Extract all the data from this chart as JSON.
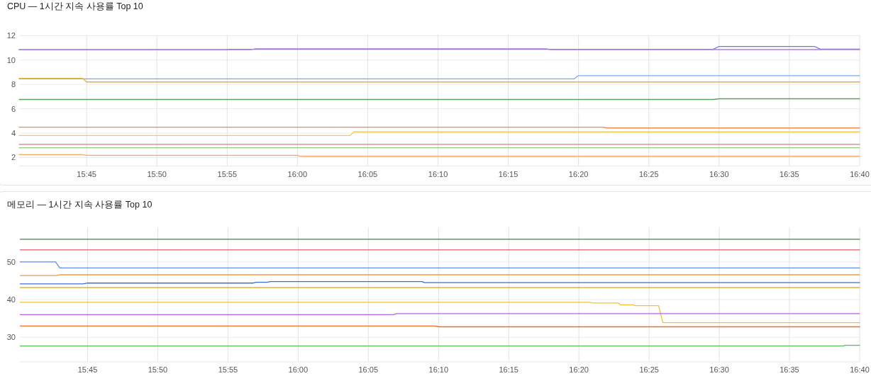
{
  "chart_data": [
    {
      "type": "line",
      "title": "CPU — 1시간 지속 사용률 Top 10",
      "xlim": [
        15.67,
        16.6667
      ],
      "ylim": [
        1.3,
        12
      ],
      "grid": true,
      "xticks": [
        {
          "value": 15.75,
          "label": "15:45"
        },
        {
          "value": 15.8333,
          "label": "15:50"
        },
        {
          "value": 15.9167,
          "label": "15:55"
        },
        {
          "value": 16.0,
          "label": "16:00"
        },
        {
          "value": 16.0833,
          "label": "16:05"
        },
        {
          "value": 16.1667,
          "label": "16:10"
        },
        {
          "value": 16.25,
          "label": "16:15"
        },
        {
          "value": 16.3333,
          "label": "16:20"
        },
        {
          "value": 16.4167,
          "label": "16:25"
        },
        {
          "value": 16.5,
          "label": "16:30"
        },
        {
          "value": 16.5833,
          "label": "16:35"
        },
        {
          "value": 16.6667,
          "label": "16:40"
        }
      ],
      "yticks": [
        2,
        4,
        6,
        8,
        10,
        12
      ],
      "series": [
        {
          "color": "#5b7fe0",
          "x": [
            15.67,
            15.915,
            15.92,
            16.493,
            16.5,
            16.613,
            16.62,
            16.6667
          ],
          "values": [
            10.85,
            10.85,
            10.88,
            10.88,
            11.12,
            11.12,
            10.9,
            10.9
          ]
        },
        {
          "color": "#b878e6",
          "x": [
            15.67,
            15.945,
            15.95,
            16.295,
            16.3,
            16.6667
          ],
          "values": [
            10.85,
            10.85,
            10.92,
            10.92,
            10.86,
            10.86
          ]
        },
        {
          "color": "#7fa7ef",
          "x": [
            15.67,
            16.328,
            16.333,
            16.6667
          ],
          "values": [
            8.45,
            8.45,
            8.72,
            8.72
          ]
        },
        {
          "color": "#e0b43a",
          "x": [
            15.67,
            15.745,
            15.75,
            16.6667
          ],
          "values": [
            8.5,
            8.5,
            8.2,
            8.2
          ]
        },
        {
          "color": "#5aa55a",
          "x": [
            15.67,
            16.493,
            16.5,
            16.6667
          ],
          "values": [
            6.76,
            6.76,
            6.82,
            6.82
          ]
        },
        {
          "color": "#f08a4b",
          "x": [
            15.67,
            16.363,
            16.367,
            16.6667
          ],
          "values": [
            4.48,
            4.48,
            4.42,
            4.42
          ]
        },
        {
          "color": "#f2cc55",
          "x": [
            15.67,
            16.062,
            16.067,
            16.6667
          ],
          "values": [
            3.8,
            3.8,
            4.1,
            4.1
          ]
        },
        {
          "color": "#f07580",
          "x": [
            15.67,
            16.6667
          ],
          "values": [
            3.08,
            3.08
          ]
        },
        {
          "color": "#8fcb80",
          "x": [
            15.67,
            16.6667
          ],
          "values": [
            2.8,
            2.8
          ]
        },
        {
          "color": "#f7a85e",
          "x": [
            15.67,
            15.745,
            15.75,
            16.0,
            16.003,
            16.6667
          ],
          "values": [
            2.23,
            2.23,
            2.17,
            2.17,
            2.1,
            2.1
          ]
        }
      ]
    },
    {
      "type": "line",
      "title": "메모리 — 1시간 지속 사용률 Top 10",
      "xlim": [
        15.67,
        16.6667
      ],
      "ylim": [
        23.5,
        59
      ],
      "grid": true,
      "xticks": [
        {
          "value": 15.75,
          "label": "15:45"
        },
        {
          "value": 15.8333,
          "label": "15:50"
        },
        {
          "value": 15.9167,
          "label": "15:55"
        },
        {
          "value": 16.0,
          "label": "16:00"
        },
        {
          "value": 16.0833,
          "label": "16:05"
        },
        {
          "value": 16.1667,
          "label": "16:10"
        },
        {
          "value": 16.25,
          "label": "16:15"
        },
        {
          "value": 16.3333,
          "label": "16:20"
        },
        {
          "value": 16.4167,
          "label": "16:25"
        },
        {
          "value": 16.5,
          "label": "16:30"
        },
        {
          "value": 16.5833,
          "label": "16:35"
        },
        {
          "value": 16.6667,
          "label": "16:40"
        }
      ],
      "yticks": [
        30,
        40,
        50
      ],
      "series": [
        {
          "color": "#3a8a3a",
          "x": [
            15.67,
            16.6667
          ],
          "values": [
            56.0,
            56.0
          ]
        },
        {
          "color": "#e05a68",
          "x": [
            15.67,
            16.6667
          ],
          "values": [
            53.2,
            53.2
          ]
        },
        {
          "color": "#5b8ff0",
          "x": [
            15.67,
            15.712,
            15.717,
            16.6667
          ],
          "values": [
            50.0,
            50.0,
            48.4,
            48.4
          ]
        },
        {
          "color": "#f59a45",
          "x": [
            15.67,
            15.712,
            15.717,
            16.6667
          ],
          "values": [
            46.4,
            46.4,
            46.6,
            46.6
          ]
        },
        {
          "color": "#3d6fd0",
          "x": [
            15.67,
            15.745,
            15.75,
            15.947,
            15.95,
            15.963,
            15.967,
            16.147,
            16.15,
            16.6667
          ],
          "values": [
            44.2,
            44.2,
            44.4,
            44.4,
            44.6,
            44.6,
            44.8,
            44.8,
            44.5,
            44.5
          ]
        },
        {
          "color": "#d6a520",
          "x": [
            15.67,
            16.6667
          ],
          "values": [
            43.2,
            43.2
          ]
        },
        {
          "color": "#f2c230",
          "x": [
            15.67,
            16.346,
            16.35,
            16.38,
            16.383,
            16.398,
            16.4,
            16.428,
            16.433,
            16.6667
          ],
          "values": [
            39.3,
            39.3,
            39.1,
            39.1,
            38.6,
            38.6,
            38.4,
            38.4,
            33.9,
            33.9
          ]
        },
        {
          "color": "#b565dc",
          "x": [
            15.67,
            16.113,
            16.117,
            16.6667
          ],
          "values": [
            36.0,
            36.0,
            36.3,
            36.3
          ]
        },
        {
          "color": "#ec6f2c",
          "x": [
            15.67,
            16.162,
            16.167,
            16.6667
          ],
          "values": [
            33.0,
            33.0,
            32.8,
            32.8
          ]
        },
        {
          "color": "#5cb85c",
          "x": [
            15.67,
            16.647,
            16.65,
            16.6667
          ],
          "values": [
            27.7,
            27.7,
            27.9,
            27.9
          ]
        }
      ]
    }
  ]
}
